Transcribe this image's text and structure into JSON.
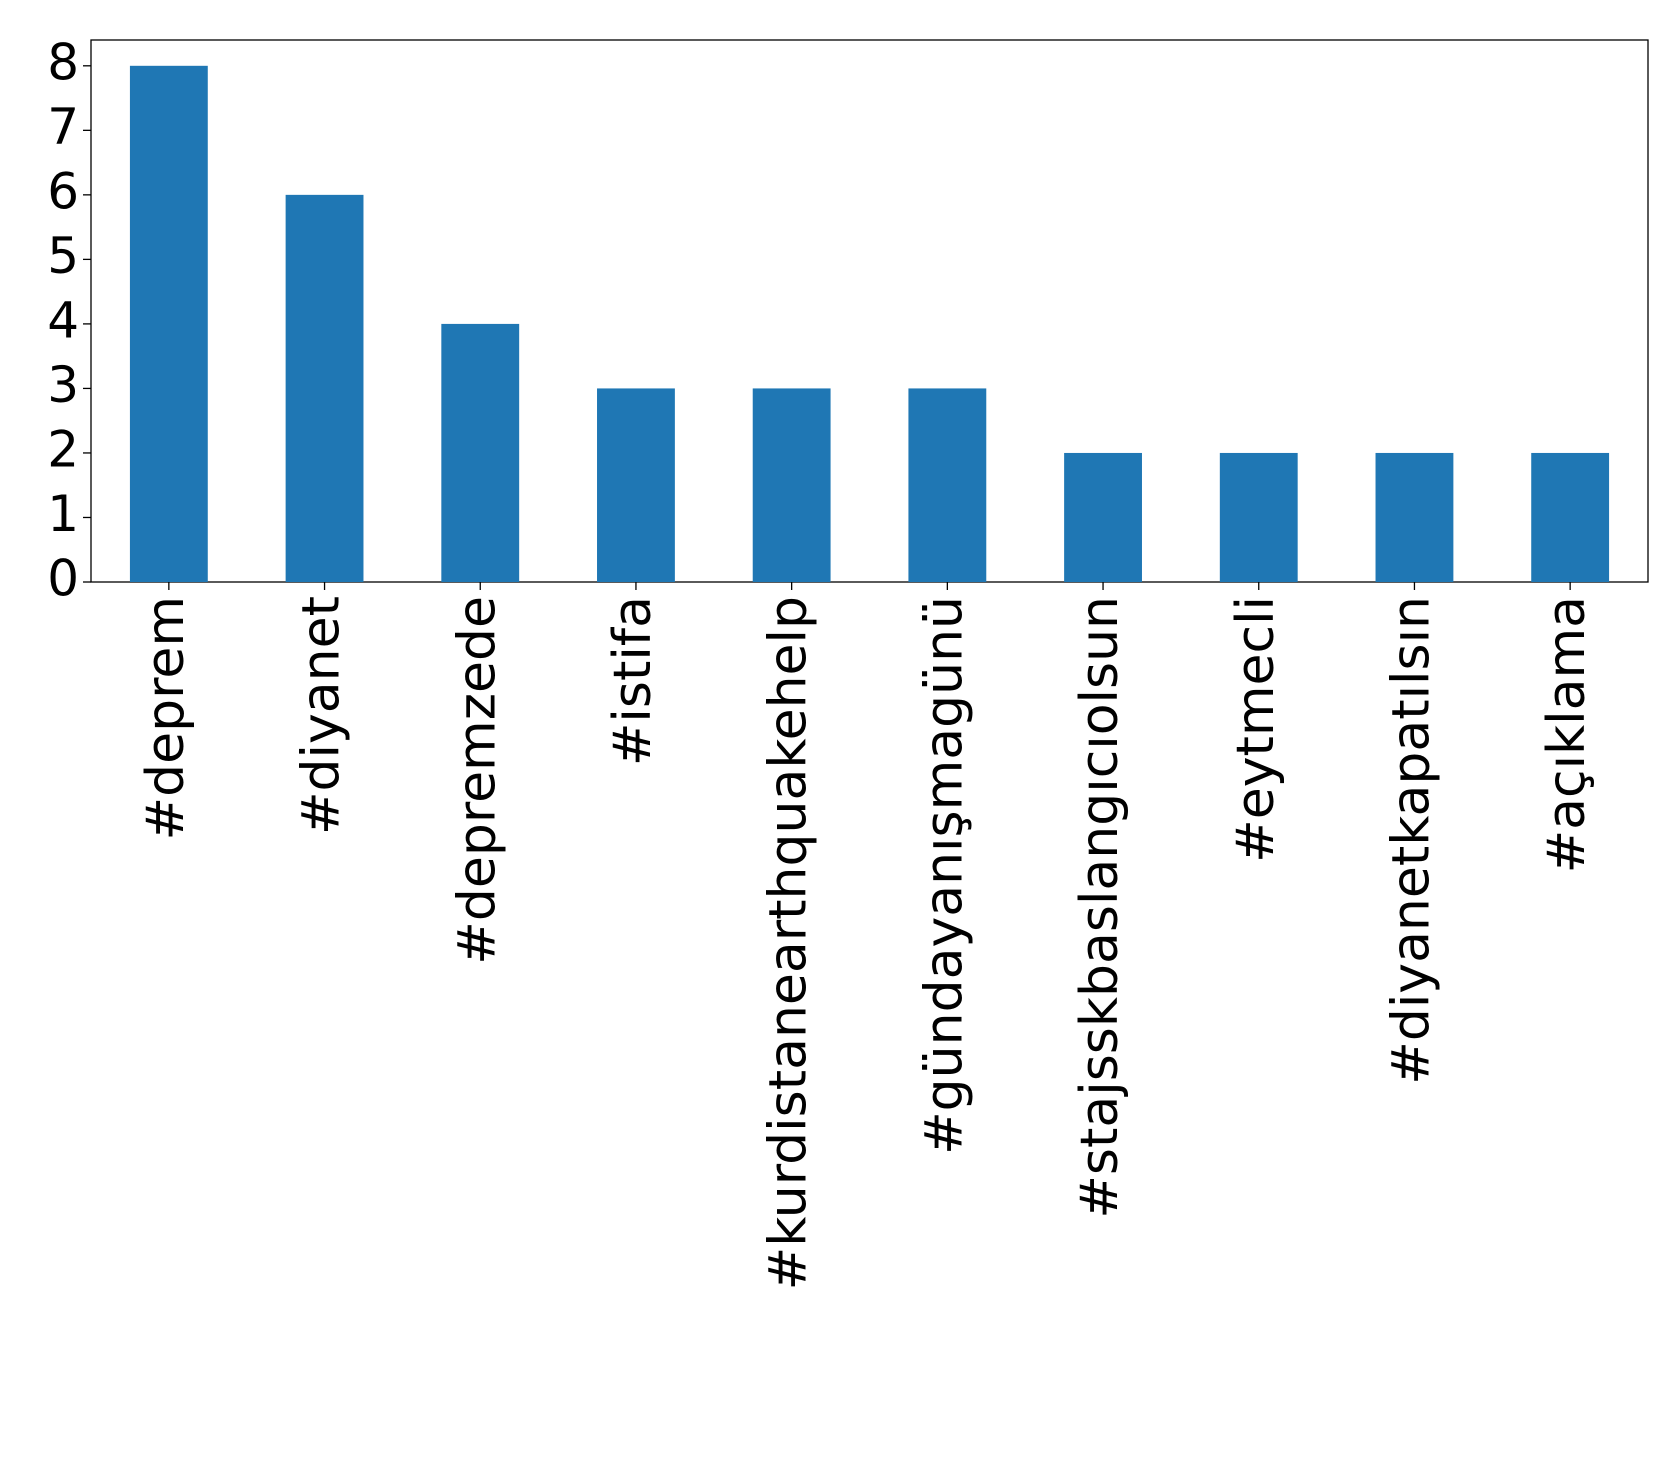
{
  "chart_data": {
    "type": "bar",
    "categories": [
      "#deprem",
      "#diyanet",
      "#depremzede",
      "#istifa",
      "#kurdistanearthquakehelp",
      "#gündayanışmagünü",
      "#stajsskbaslangıcıolsun",
      "#eytmecli",
      "#diyanetkapatılsın",
      "#açıklama"
    ],
    "values": [
      8,
      6,
      4,
      3,
      3,
      3,
      2,
      2,
      2,
      2
    ],
    "color": "#1f77b4",
    "ylim": [
      0,
      8.4
    ],
    "yticks": [
      0,
      1,
      2,
      3,
      4,
      5,
      6,
      7,
      8
    ],
    "grid": false
  }
}
